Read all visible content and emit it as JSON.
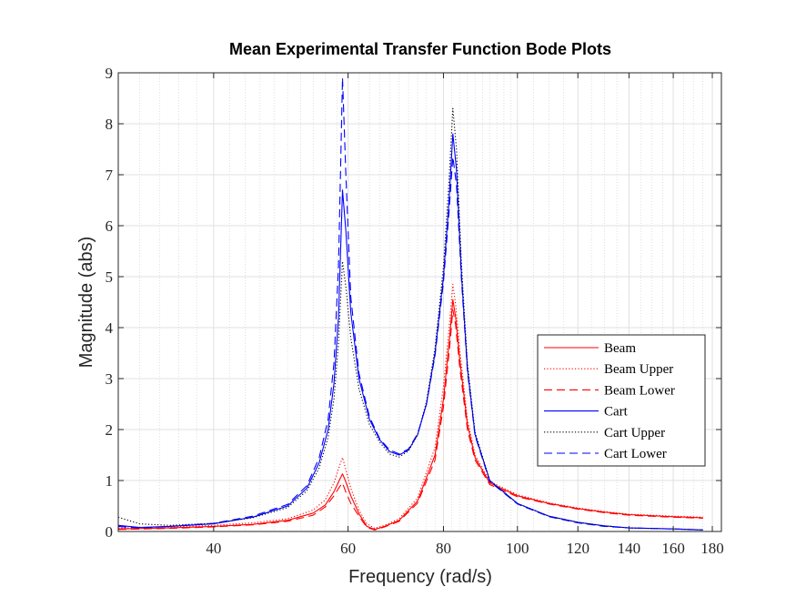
{
  "chart_data": {
    "type": "line",
    "title": "Mean Experimental Transfer Function Bode Plots",
    "xlabel": "Frequency  (rad/s)",
    "ylabel": "Magnitude (abs)",
    "x_scale": "log",
    "xlim": [
      30,
      185
    ],
    "ylim": [
      0,
      9
    ],
    "x_ticks": [
      40,
      60,
      80,
      100,
      120,
      140,
      160,
      180
    ],
    "x_tick_labels": [
      "40",
      "60",
      "80",
      "100",
      "120",
      "140",
      "160",
      "180"
    ],
    "y_ticks": [
      0,
      1,
      2,
      3,
      4,
      5,
      6,
      7,
      8,
      9
    ],
    "y_tick_labels": [
      "0",
      "1",
      "2",
      "3",
      "4",
      "5",
      "6",
      "7",
      "8",
      "9"
    ],
    "grid": true,
    "legend_position": "right",
    "legend": [
      "Beam",
      "Beam Upper",
      "Beam Lower",
      "Cart",
      "Cart Upper",
      "Cart Lower"
    ],
    "series": [
      {
        "name": "Beam",
        "color": "#ff0000",
        "style": "solid",
        "x": [
          30,
          35,
          40,
          45,
          50,
          54,
          56,
          57.5,
          58.5,
          59,
          59.5,
          60.5,
          62,
          63.5,
          65,
          67,
          70,
          74,
          78,
          80,
          81.5,
          82.3,
          83,
          84,
          86,
          88,
          92,
          100,
          110,
          120,
          130,
          140,
          160,
          175
        ],
        "y": [
          0.05,
          0.07,
          0.1,
          0.14,
          0.22,
          0.36,
          0.52,
          0.78,
          1.02,
          1.13,
          1.0,
          0.7,
          0.35,
          0.1,
          0.04,
          0.1,
          0.22,
          0.6,
          1.5,
          2.6,
          3.8,
          4.55,
          4.2,
          3.4,
          2.1,
          1.45,
          0.95,
          0.7,
          0.55,
          0.45,
          0.38,
          0.33,
          0.29,
          0.27
        ]
      },
      {
        "name": "Beam Upper",
        "color": "#ff0000",
        "style": "dotted",
        "x": [
          30,
          35,
          40,
          45,
          50,
          54,
          56,
          57.5,
          58.5,
          59,
          59.5,
          60.5,
          62,
          63.5,
          65,
          67,
          70,
          74,
          78,
          80,
          81.5,
          82.3,
          83,
          84,
          86,
          88,
          92,
          100,
          110,
          120,
          130,
          140,
          160,
          175
        ],
        "y": [
          0.07,
          0.09,
          0.12,
          0.17,
          0.25,
          0.42,
          0.62,
          0.95,
          1.3,
          1.45,
          1.25,
          0.85,
          0.42,
          0.15,
          0.06,
          0.12,
          0.25,
          0.66,
          1.65,
          2.85,
          4.1,
          4.85,
          4.45,
          3.6,
          2.2,
          1.5,
          0.98,
          0.72,
          0.56,
          0.46,
          0.39,
          0.34,
          0.3,
          0.28
        ]
      },
      {
        "name": "Beam Lower",
        "color": "#ff0000",
        "style": "dashed",
        "x": [
          30,
          35,
          40,
          45,
          50,
          54,
          56,
          57.5,
          58.5,
          59,
          59.5,
          60.5,
          62,
          63.5,
          65,
          67,
          70,
          74,
          78,
          80,
          81.5,
          82.3,
          83,
          84,
          86,
          88,
          92,
          100,
          110,
          120,
          130,
          140,
          160,
          175
        ],
        "y": [
          0.04,
          0.06,
          0.09,
          0.13,
          0.2,
          0.32,
          0.48,
          0.7,
          0.88,
          0.95,
          0.8,
          0.55,
          0.3,
          0.08,
          0.03,
          0.09,
          0.2,
          0.56,
          1.4,
          2.45,
          3.6,
          4.35,
          4.05,
          3.25,
          2.0,
          1.4,
          0.92,
          0.68,
          0.54,
          0.44,
          0.37,
          0.32,
          0.28,
          0.26
        ]
      },
      {
        "name": "Cart",
        "color": "#0000ff",
        "style": "solid",
        "x": [
          30,
          32,
          35,
          40,
          45,
          50,
          53,
          55,
          56.5,
          57.5,
          58.3,
          59,
          59.6,
          60.5,
          62,
          64,
          66,
          68,
          70,
          72,
          74,
          76,
          78,
          80,
          81.3,
          82.3,
          83.2,
          84.5,
          86,
          88,
          92,
          100,
          110,
          120,
          130,
          140,
          160,
          175
        ],
        "y": [
          0.12,
          0.08,
          0.1,
          0.15,
          0.28,
          0.5,
          0.85,
          1.35,
          2.0,
          2.9,
          4.2,
          6.7,
          5.9,
          4.3,
          3.0,
          2.2,
          1.8,
          1.57,
          1.5,
          1.6,
          1.9,
          2.5,
          3.5,
          5.0,
          6.4,
          7.8,
          7.1,
          5.0,
          3.2,
          1.9,
          1.0,
          0.55,
          0.3,
          0.18,
          0.11,
          0.07,
          0.05,
          0.03
        ]
      },
      {
        "name": "Cart Upper",
        "color": "#000000",
        "style": "dotted",
        "x": [
          30,
          32,
          35,
          40,
          45,
          50,
          53,
          55,
          56.5,
          57.5,
          58.3,
          59,
          59.6,
          60.5,
          62,
          64,
          66,
          68,
          70,
          72,
          74,
          76,
          78,
          80,
          81.3,
          82.3,
          83.2,
          84.5,
          86,
          88,
          92,
          100,
          110,
          120,
          130,
          140,
          160,
          175
        ],
        "y": [
          0.28,
          0.15,
          0.12,
          0.16,
          0.27,
          0.47,
          0.8,
          1.25,
          1.85,
          2.6,
          3.7,
          5.3,
          4.8,
          3.8,
          2.8,
          2.1,
          1.75,
          1.52,
          1.46,
          1.58,
          1.9,
          2.55,
          3.6,
          5.2,
          6.8,
          8.3,
          7.5,
          5.2,
          3.3,
          1.95,
          1.0,
          0.55,
          0.3,
          0.18,
          0.11,
          0.07,
          0.05,
          0.03
        ]
      },
      {
        "name": "Cart Lower",
        "color": "#0000ff",
        "style": "dashed",
        "x": [
          30,
          32,
          35,
          40,
          45,
          50,
          53,
          55,
          56.5,
          57.5,
          58.3,
          59,
          59.6,
          60.5,
          62,
          64,
          66,
          68,
          70,
          72,
          74,
          76,
          78,
          80,
          81.3,
          82.3,
          83.2,
          84.5,
          86,
          88,
          92,
          100,
          110,
          120,
          130,
          140,
          160,
          175
        ],
        "y": [
          0.1,
          0.07,
          0.1,
          0.16,
          0.3,
          0.53,
          0.9,
          1.45,
          2.2,
          3.3,
          5.2,
          8.9,
          7.0,
          4.6,
          3.1,
          2.25,
          1.82,
          1.6,
          1.52,
          1.62,
          1.92,
          2.5,
          3.45,
          4.9,
          6.2,
          7.35,
          6.8,
          4.9,
          3.15,
          1.88,
          0.98,
          0.54,
          0.29,
          0.17,
          0.1,
          0.07,
          0.05,
          0.03
        ]
      }
    ]
  }
}
